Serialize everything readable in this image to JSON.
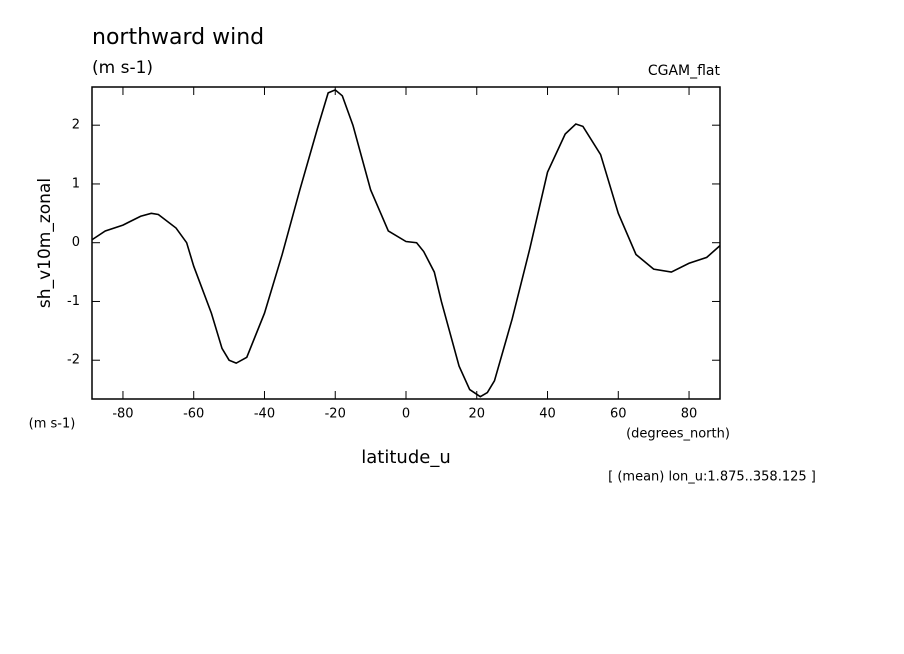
{
  "chart_data": {
    "type": "line",
    "title": "northward wind",
    "units": "(m s-1)",
    "dataset": "CGAM_flat",
    "y_label": "sh_v10m_zonal",
    "y_units": "(m s-1)",
    "x_label": "latitude_u",
    "x_units": "(degrees_north)",
    "annotation": "[ (mean) lon_u:1.875..358.125 ]",
    "x": [
      -88.75,
      -85,
      -80,
      -75,
      -72,
      -70,
      -65,
      -62,
      -60,
      -55,
      -52,
      -50,
      -48,
      -45,
      -40,
      -35,
      -30,
      -25,
      -22,
      -20,
      -18,
      -15,
      -10,
      -5,
      0,
      3,
      5,
      8,
      10,
      15,
      18,
      21,
      23,
      25,
      30,
      35,
      40,
      45,
      48,
      50,
      55,
      60,
      65,
      70,
      75,
      80,
      85,
      88.75
    ],
    "series": [
      {
        "name": "sh_v10m_zonal",
        "color": "#000000",
        "values": [
          0.05,
          0.2,
          0.3,
          0.45,
          0.5,
          0.48,
          0.25,
          0.0,
          -0.4,
          -1.2,
          -1.8,
          -2.0,
          -2.05,
          -1.95,
          -1.2,
          -0.2,
          0.9,
          1.95,
          2.55,
          2.6,
          2.5,
          2.0,
          0.9,
          0.2,
          0.02,
          0.0,
          -0.15,
          -0.5,
          -1.0,
          -2.1,
          -2.5,
          -2.62,
          -2.55,
          -2.35,
          -1.3,
          -0.1,
          1.2,
          1.85,
          2.02,
          1.98,
          1.5,
          0.5,
          -0.2,
          -0.45,
          -0.5,
          -0.35,
          -0.25,
          -0.05
        ]
      }
    ],
    "xlim": [
      -88.75,
      88.75
    ],
    "ylim": [
      -2.66,
      2.65
    ],
    "xticks": [
      -80,
      -60,
      -40,
      -20,
      0,
      20,
      40,
      60,
      80
    ],
    "yticks": [
      -2,
      -1,
      0,
      1,
      2
    ],
    "grid": false
  }
}
